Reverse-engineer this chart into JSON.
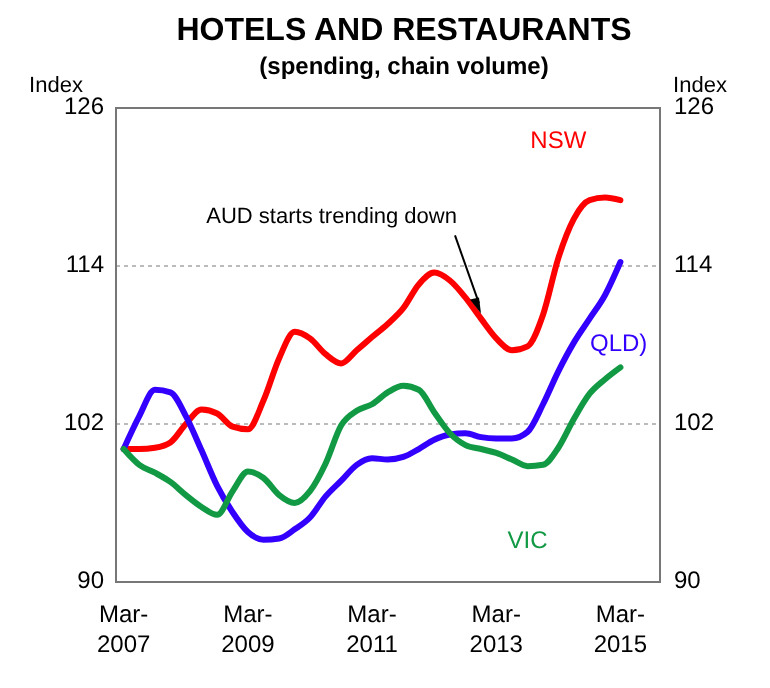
{
  "chart_data": {
    "type": "line",
    "title": "HOTELS AND RESTAURANTS",
    "subtitle": "(spending, chain volume)",
    "ylabel": "Index",
    "y2label": "Index",
    "x": [
      "2007-03",
      "2007-06",
      "2007-09",
      "2007-12",
      "2008-03",
      "2008-06",
      "2008-09",
      "2008-12",
      "2009-03",
      "2009-06",
      "2009-09",
      "2009-12",
      "2010-03",
      "2010-06",
      "2010-09",
      "2010-12",
      "2011-03",
      "2011-06",
      "2011-09",
      "2011-12",
      "2012-03",
      "2012-06",
      "2012-09",
      "2012-12",
      "2013-03",
      "2013-06",
      "2013-09",
      "2013-12",
      "2014-03",
      "2014-06",
      "2014-09",
      "2014-12",
      "2015-03"
    ],
    "series": [
      {
        "name": "NSW",
        "color": "#ff0000",
        "values": [
          100.1,
          100.1,
          100.2,
          100.6,
          102.0,
          103.1,
          102.8,
          101.8,
          101.6,
          103.8,
          107.0,
          109.0,
          108.5,
          107.3,
          106.6,
          107.6,
          108.6,
          109.6,
          110.8,
          112.6,
          113.5,
          112.9,
          111.6,
          110.0,
          108.5,
          107.6,
          107.9,
          110.3,
          114.6,
          117.6,
          119.0,
          119.2,
          119.0
        ]
      },
      {
        "name": "QLD)",
        "color": "#3300ff",
        "values": [
          100.1,
          102.6,
          104.6,
          104.4,
          102.6,
          100.0,
          97.3,
          95.3,
          93.8,
          93.2,
          93.3,
          94.0,
          94.9,
          96.5,
          97.7,
          98.9,
          99.4,
          99.3,
          99.5,
          100.1,
          100.8,
          101.2,
          101.3,
          101.0,
          100.9,
          100.9,
          101.4,
          103.5,
          106.0,
          108.2,
          110.0,
          111.8,
          114.3
        ]
      },
      {
        "name": "VIC",
        "color": "#119944",
        "values": [
          100.1,
          98.9,
          98.3,
          97.6,
          96.6,
          95.7,
          95.1,
          96.9,
          98.4,
          97.9,
          96.6,
          96.0,
          96.9,
          99.0,
          101.9,
          103.0,
          103.5,
          104.4,
          104.9,
          104.6,
          102.9,
          101.3,
          100.4,
          100.1,
          99.8,
          99.3,
          98.8,
          98.9,
          100.2,
          102.4,
          104.3,
          105.4,
          106.3
        ]
      }
    ],
    "xlim": [
      "2007-01-15",
      "2015-10-20"
    ],
    "xticks": [
      {
        "value": "2007-03",
        "label": "Mar-2007"
      },
      {
        "value": "2009-03",
        "label": "Mar-2009"
      },
      {
        "value": "2011-03",
        "label": "Mar-2011"
      },
      {
        "value": "2013-03",
        "label": "Mar-2013"
      },
      {
        "value": "2015-03",
        "label": "Mar-2015"
      }
    ],
    "ylim": [
      90,
      126
    ],
    "yticks": [
      90,
      102,
      114,
      126
    ],
    "y2lim": [
      90,
      126
    ],
    "y2ticks": [
      90,
      102,
      114,
      126
    ],
    "grid": "y",
    "annotations": [
      {
        "text": "AUD starts trending down",
        "x": "2012-12",
        "y": 110.4
      }
    ]
  }
}
